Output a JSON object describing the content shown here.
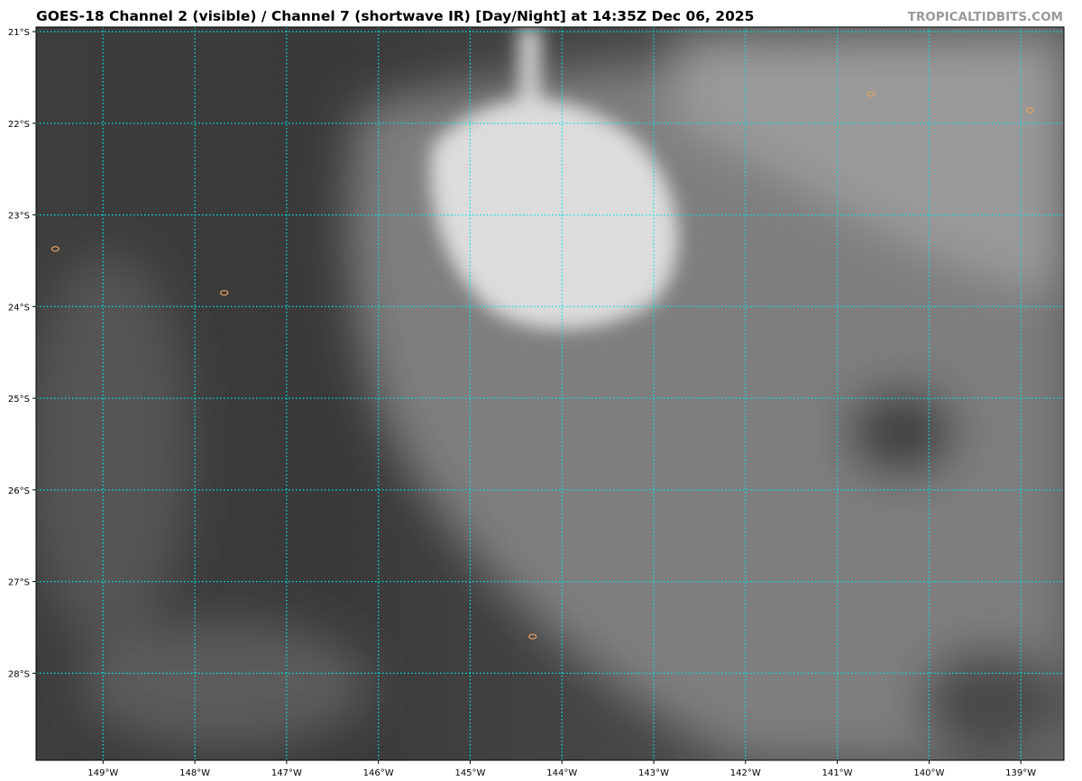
{
  "header": {
    "title": "GOES-18 Channel 2 (visible) / Channel 7 (shortwave IR) [Day/Night] at 14:35Z Dec 06, 2025",
    "brand": "TROPICALTIDBITS.COM"
  },
  "map": {
    "lon_range": [
      -149.73,
      -138.53
    ],
    "lat_range": [
      -28.95,
      -20.95
    ],
    "grid_color": "#00e5e5",
    "coast_color": "#e8a060",
    "lon_ticks": [
      {
        "value": -149,
        "label": "149°W"
      },
      {
        "value": -148,
        "label": "148°W"
      },
      {
        "value": -147,
        "label": "147°W"
      },
      {
        "value": -146,
        "label": "146°W"
      },
      {
        "value": -145,
        "label": "145°W"
      },
      {
        "value": -144,
        "label": "144°W"
      },
      {
        "value": -143,
        "label": "143°W"
      },
      {
        "value": -142,
        "label": "142°W"
      },
      {
        "value": -141,
        "label": "141°W"
      },
      {
        "value": -140,
        "label": "140°W"
      },
      {
        "value": -139,
        "label": "139°W"
      }
    ],
    "lat_ticks": [
      {
        "value": -21,
        "label": "21°S"
      },
      {
        "value": -22,
        "label": "22°S"
      },
      {
        "value": -23,
        "label": "23°S"
      },
      {
        "value": -24,
        "label": "24°S"
      },
      {
        "value": -25,
        "label": "25°S"
      },
      {
        "value": -26,
        "label": "26°S"
      },
      {
        "value": -27,
        "label": "27°S"
      },
      {
        "value": -28,
        "label": "28°S"
      }
    ],
    "islands": [
      {
        "lon": -149.52,
        "lat": -23.37
      },
      {
        "lon": -147.68,
        "lat": -23.85
      },
      {
        "lon": -144.32,
        "lat": -27.6
      },
      {
        "lon": -140.63,
        "lat": -21.68
      },
      {
        "lon": -138.9,
        "lat": -21.86
      }
    ]
  }
}
